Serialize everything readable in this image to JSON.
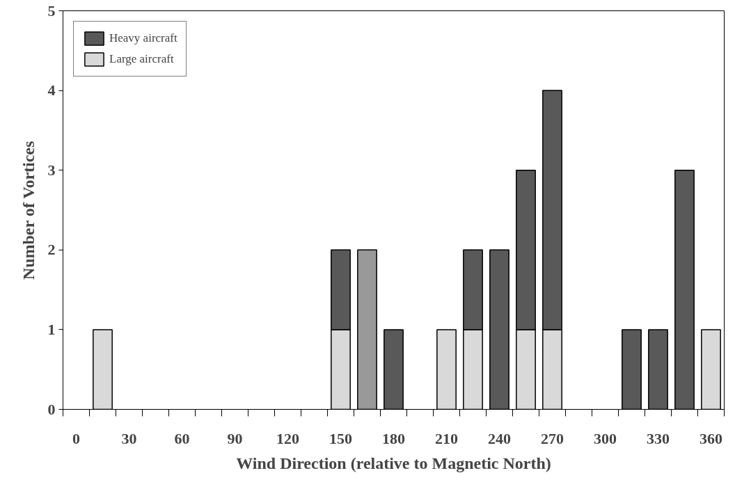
{
  "chart_data": {
    "type": "bar",
    "stacked": true,
    "xlabel": "Wind Direction (relative to Magnetic North)",
    "ylabel": "Number of Vortices",
    "categories": [
      "0",
      null,
      "30",
      null,
      "60",
      null,
      "90",
      null,
      "120",
      null,
      "150",
      null,
      "180",
      null,
      "210",
      null,
      "240",
      null,
      "270",
      null,
      "300",
      null,
      "330",
      null,
      "360"
    ],
    "series": [
      {
        "name": "Large aircraft",
        "color": "#d9d9d9",
        "values": [
          null,
          1,
          null,
          null,
          null,
          null,
          null,
          null,
          null,
          null,
          1,
          null,
          null,
          null,
          1,
          1,
          null,
          1,
          1,
          null,
          null,
          null,
          null,
          null,
          1
        ]
      },
      {
        "color": "#999999",
        "values": [
          null,
          null,
          null,
          null,
          null,
          null,
          null,
          null,
          null,
          null,
          null,
          2,
          null,
          null,
          null,
          null,
          null,
          null,
          null,
          null,
          null,
          null,
          null,
          null,
          null
        ]
      },
      {
        "name": "Heavy aircraft",
        "color": "#595959",
        "values": [
          null,
          null,
          null,
          null,
          null,
          null,
          null,
          null,
          null,
          null,
          1,
          null,
          1,
          null,
          null,
          1,
          2,
          2,
          3,
          null,
          null,
          1,
          1,
          3,
          null
        ]
      }
    ],
    "ylim": [
      0,
      5
    ],
    "yticks": [
      0,
      1,
      2,
      3,
      4,
      5
    ],
    "grid": false,
    "legend": "top left"
  }
}
